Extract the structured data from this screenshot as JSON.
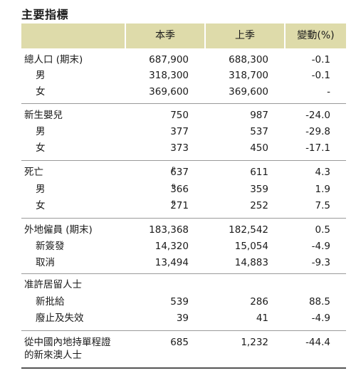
{
  "title": "主要指標",
  "header": {
    "col1": "本季",
    "col2": "上季",
    "col3": "變動(%)"
  },
  "groups": [
    {
      "rows": [
        {
          "label": "總人口 (期末)",
          "cur": "687,900",
          "prev": "688,300",
          "chg": "-0.1"
        },
        {
          "label": "男",
          "cur": "318,300",
          "prev": "318,700",
          "chg": "-0.1"
        },
        {
          "label": "女",
          "cur": "369,600",
          "prev": "369,600",
          "chg": "-"
        }
      ]
    },
    {
      "rows": [
        {
          "label": "新生嬰兒",
          "cur": "750",
          "prev": "987",
          "chg": "-24.0"
        },
        {
          "label": "男",
          "cur": "377",
          "prev": "537",
          "chg": "-29.8"
        },
        {
          "label": "女",
          "cur": "373",
          "prev": "450",
          "chg": "-17.1"
        }
      ]
    },
    {
      "rows": [
        {
          "label": "死亡",
          "cur": "637",
          "mark": "p",
          "prev": "611",
          "chg": "4.3"
        },
        {
          "label": "男",
          "cur": "366",
          "mark": "p",
          "prev": "359",
          "chg": "1.9"
        },
        {
          "label": "女",
          "cur": "271",
          "mark": "p",
          "prev": "252",
          "chg": "7.5"
        }
      ]
    },
    {
      "rows": [
        {
          "label": "外地僱員 (期末)",
          "cur": "183,368",
          "prev": "182,542",
          "chg": "0.5"
        },
        {
          "label": "新簽發",
          "cur": "14,320",
          "prev": "15,054",
          "chg": "-4.9"
        },
        {
          "label": "取消",
          "cur": "13,494",
          "prev": "14,883",
          "chg": "-9.3"
        }
      ]
    },
    {
      "rows": [
        {
          "label": "准許居留人士",
          "cur": "",
          "prev": "",
          "chg": ""
        },
        {
          "label": "新批給",
          "cur": "539",
          "prev": "286",
          "chg": "88.5"
        },
        {
          "label": "廢止及失效",
          "cur": "39",
          "prev": "41",
          "chg": "-4.9"
        }
      ]
    },
    {
      "rows": [
        {
          "label": "從中國內地持單程證",
          "label2": "的新來澳人士",
          "cur": "685",
          "prev": "1,232",
          "chg": "-44.4"
        }
      ]
    }
  ]
}
